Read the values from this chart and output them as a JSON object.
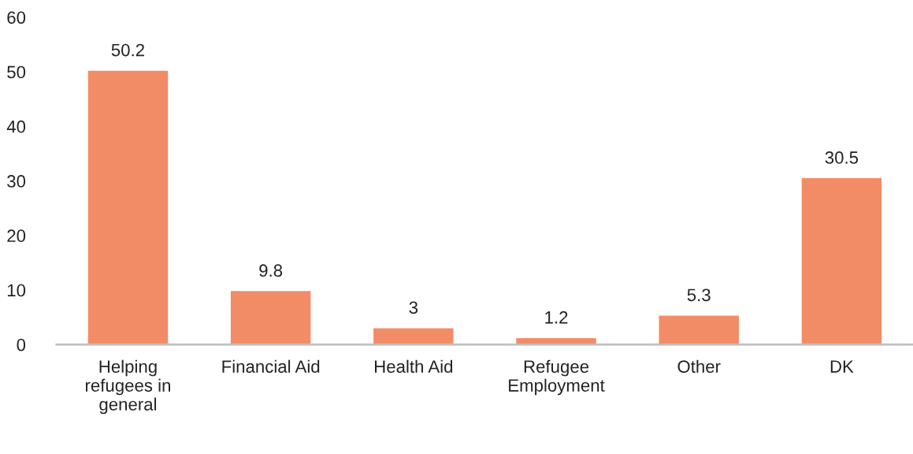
{
  "chart_data": {
    "type": "bar",
    "categories": [
      "Helping\nrefugees in\ngeneral",
      "Financial Aid",
      "Health Aid",
      "Refugee\nEmployment",
      "Other",
      "DK"
    ],
    "values": [
      50.2,
      9.8,
      3,
      1.2,
      5.3,
      30.5
    ],
    "color": "#f28c67",
    "ylim": [
      0,
      60
    ],
    "yticks": [
      0,
      10,
      20,
      30,
      40,
      50,
      60
    ],
    "data_labels": true,
    "grid": false,
    "legend": false
  }
}
